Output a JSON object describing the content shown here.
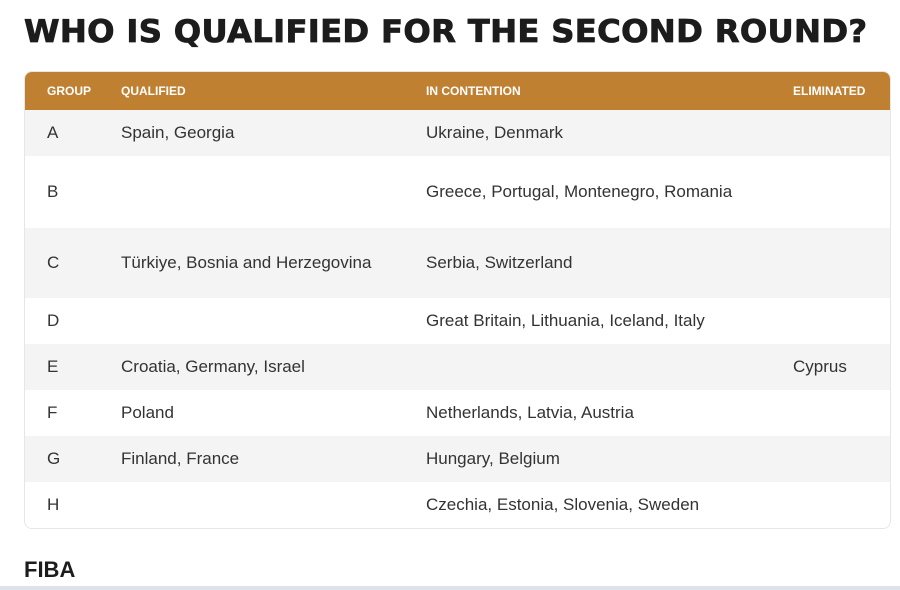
{
  "title": "WHO IS QUALIFIED FOR THE SECOND ROUND?",
  "header_color": "#bf8032",
  "columns": [
    "GROUP",
    "QUALIFIED",
    "IN CONTENTION",
    "ELIMINATED"
  ],
  "rows": [
    {
      "group": "A",
      "qualified": "Spain, Georgia",
      "contention": "Ukraine, Denmark",
      "eliminated": ""
    },
    {
      "group": "B",
      "qualified": "",
      "contention": "Greece, Portugal, Montenegro, Romania",
      "eliminated": ""
    },
    {
      "group": "C",
      "qualified": "Türkiye, Bosnia and Herzegovina",
      "contention": "Serbia, Switzerland",
      "eliminated": ""
    },
    {
      "group": "D",
      "qualified": "",
      "contention": "Great Britain, Lithuania, Iceland, Italy",
      "eliminated": ""
    },
    {
      "group": "E",
      "qualified": "Croatia, Germany, Israel",
      "contention": "",
      "eliminated": "Cyprus"
    },
    {
      "group": "F",
      "qualified": "Poland",
      "contention": "Netherlands, Latvia, Austria",
      "eliminated": ""
    },
    {
      "group": "G",
      "qualified": "Finland, France",
      "contention": "Hungary, Belgium",
      "eliminated": ""
    },
    {
      "group": "H",
      "qualified": "",
      "contention": "Czechia, Estonia, Slovenia, Sweden",
      "eliminated": ""
    }
  ],
  "footer": "FIBA"
}
